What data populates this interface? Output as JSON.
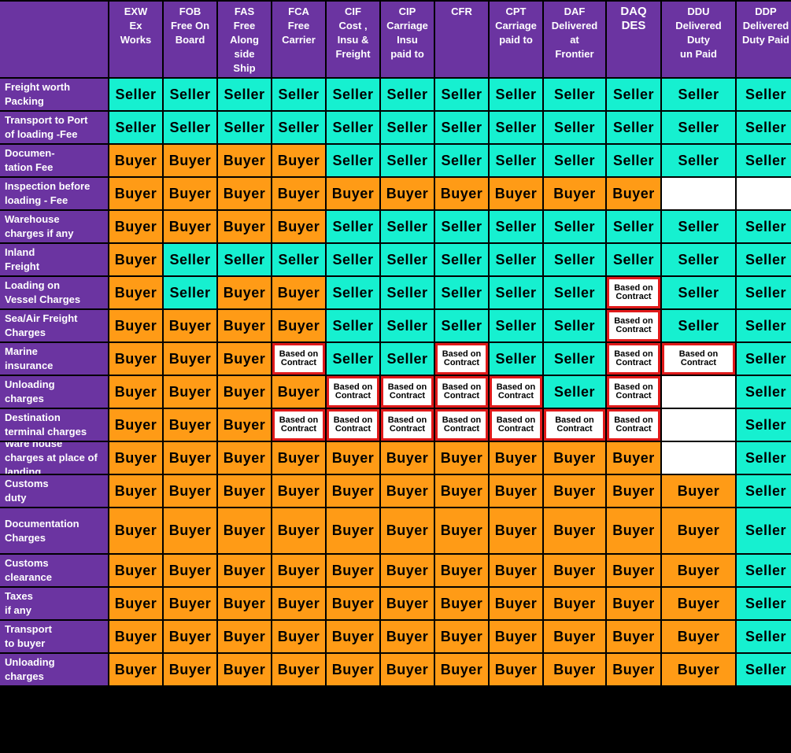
{
  "terms": [
    {
      "code": "EXW",
      "name": "Ex\nWorks"
    },
    {
      "code": "FOB",
      "name": "Free On\nBoard"
    },
    {
      "code": "FAS",
      "name": "Free\nAlong\nside\nShip"
    },
    {
      "code": "FCA",
      "name": "Free\nCarrier"
    },
    {
      "code": "CIF",
      "name": "Cost ,\nInsu &\nFreight"
    },
    {
      "code": "CIP",
      "name": "Carriage\nInsu\npaid to"
    },
    {
      "code": "CFR",
      "name": ""
    },
    {
      "code": "CPT",
      "name": "Carriage\npaid to"
    },
    {
      "code": "DAF",
      "name": "Delivered\nat\nFrontier"
    },
    {
      "code": "DAQ",
      "name": "DES"
    },
    {
      "code": "DDU",
      "name": "Delivered\nDuty\nun Paid"
    },
    {
      "code": "DDP",
      "name": "Delivered\nDuty Paid"
    }
  ],
  "rows": [
    {
      "label": "Freight worth\nPacking",
      "values": [
        "Seller",
        "Seller",
        "Seller",
        "Seller",
        "Seller",
        "Seller",
        "Seller",
        "Seller",
        "Seller",
        "Seller",
        "Seller",
        "Seller"
      ]
    },
    {
      "label": "Transport to Port\nof loading -Fee",
      "values": [
        "Seller",
        "Seller",
        "Seller",
        "Seller",
        "Seller",
        "Seller",
        "Seller",
        "Seller",
        "Seller",
        "Seller",
        "Seller",
        "Seller"
      ]
    },
    {
      "label": "Documen-\ntation Fee",
      "values": [
        "Buyer",
        "Buyer",
        "Buyer",
        "Buyer",
        "Seller",
        "Seller",
        "Seller",
        "Seller",
        "Seller",
        "Seller",
        "Seller",
        "Seller"
      ]
    },
    {
      "label": "Inspection before\nloading - Fee",
      "values": [
        "Buyer",
        "Buyer",
        "Buyer",
        "Buyer",
        "Buyer",
        "Buyer",
        "Buyer",
        "Buyer",
        "Buyer",
        "Buyer",
        "",
        ""
      ]
    },
    {
      "label": "Warehouse\ncharges if any",
      "values": [
        "Buyer",
        "Buyer",
        "Buyer",
        "Buyer",
        "Seller",
        "Seller",
        "Seller",
        "Seller",
        "Seller",
        "Seller",
        "Seller",
        "Seller"
      ]
    },
    {
      "label": "Inland\nFreight",
      "values": [
        "Buyer",
        "Seller",
        "Seller",
        "Seller",
        "Seller",
        "Seller",
        "Seller",
        "Seller",
        "Seller",
        "Seller",
        "Seller",
        "Seller"
      ]
    },
    {
      "label": "Loading on\nVessel Charges",
      "values": [
        "Buyer",
        "Seller",
        "Buyer",
        "Buyer",
        "Seller",
        "Seller",
        "Seller",
        "Seller",
        "Seller",
        "Based on\nContract",
        "Seller",
        "Seller"
      ]
    },
    {
      "label": "Sea/Air Freight\nCharges",
      "values": [
        "Buyer",
        "Buyer",
        "Buyer",
        "Buyer",
        "Seller",
        "Seller",
        "Seller",
        "Seller",
        "Seller",
        "Based on\nContract",
        "Seller",
        "Seller"
      ]
    },
    {
      "label": "Marine\ninsurance",
      "values": [
        "Buyer",
        "Buyer",
        "Buyer",
        "Based on\nContract",
        "Seller",
        "Seller",
        "Based on\nContract",
        "Seller",
        "Seller",
        "Based on\nContract",
        "Based on\nContract",
        "Seller"
      ]
    },
    {
      "label": "Unloading\ncharges",
      "values": [
        "Buyer",
        "Buyer",
        "Buyer",
        "Buyer",
        "Based on\nContract",
        "Based on\nContract",
        "Based on\nContract",
        "Based on\nContract",
        "Seller",
        "Based on\nContract",
        "",
        "Seller"
      ]
    },
    {
      "label": "Destination\nterminal charges",
      "values": [
        "Buyer",
        "Buyer",
        "Buyer",
        "Based on\nContract",
        "Based on\nContract",
        "Based on\nContract",
        "Based on\nContract",
        "Based on\nContract",
        "Based on\nContract",
        "Based on\nContract",
        "",
        "Seller"
      ]
    },
    {
      "label": "Ware house\ncharges at place of\nlanding",
      "values": [
        "Buyer",
        "Buyer",
        "Buyer",
        "Buyer",
        "Buyer",
        "Buyer",
        "Buyer",
        "Buyer",
        "Buyer",
        "Buyer",
        "",
        "Seller"
      ]
    },
    {
      "label": "Customs\nduty",
      "values": [
        "Buyer",
        "Buyer",
        "Buyer",
        "Buyer",
        "Buyer",
        "Buyer",
        "Buyer",
        "Buyer",
        "Buyer",
        "Buyer",
        "Buyer",
        "Seller"
      ]
    },
    {
      "label": "Documentation\nCharges",
      "values": [
        "Buyer",
        "Buyer",
        "Buyer",
        "Buyer",
        "Buyer",
        "Buyer",
        "Buyer",
        "Buyer",
        "Buyer",
        "Buyer",
        "Buyer",
        "Seller"
      ]
    },
    {
      "label": "Customs\nclearance",
      "values": [
        "Buyer",
        "Buyer",
        "Buyer",
        "Buyer",
        "Buyer",
        "Buyer",
        "Buyer",
        "Buyer",
        "Buyer",
        "Buyer",
        "Buyer",
        "Seller"
      ]
    },
    {
      "label": "Taxes\n if any",
      "values": [
        "Buyer",
        "Buyer",
        "Buyer",
        "Buyer",
        "Buyer",
        "Buyer",
        "Buyer",
        "Buyer",
        "Buyer",
        "Buyer",
        "Buyer",
        "Seller"
      ]
    },
    {
      "label": "Transport\n to buyer",
      "values": [
        "Buyer",
        "Buyer",
        "Buyer",
        "Buyer",
        "Buyer",
        "Buyer",
        "Buyer",
        "Buyer",
        "Buyer",
        "Buyer",
        "Buyer",
        "Seller"
      ]
    },
    {
      "label": "Unloading\ncharges",
      "values": [
        "Buyer",
        "Buyer",
        "Buyer",
        "Buyer",
        "Buyer",
        "Buyer",
        "Buyer",
        "Buyer",
        "Buyer",
        "Buyer",
        "Buyer",
        "Seller"
      ]
    }
  ],
  "colors": {
    "header_bg": "#6b34a1",
    "seller_bg": "#16f0d0",
    "buyer_bg": "#ff9b16",
    "contract_border": "#e01a1a",
    "grid_line": "#000000"
  }
}
